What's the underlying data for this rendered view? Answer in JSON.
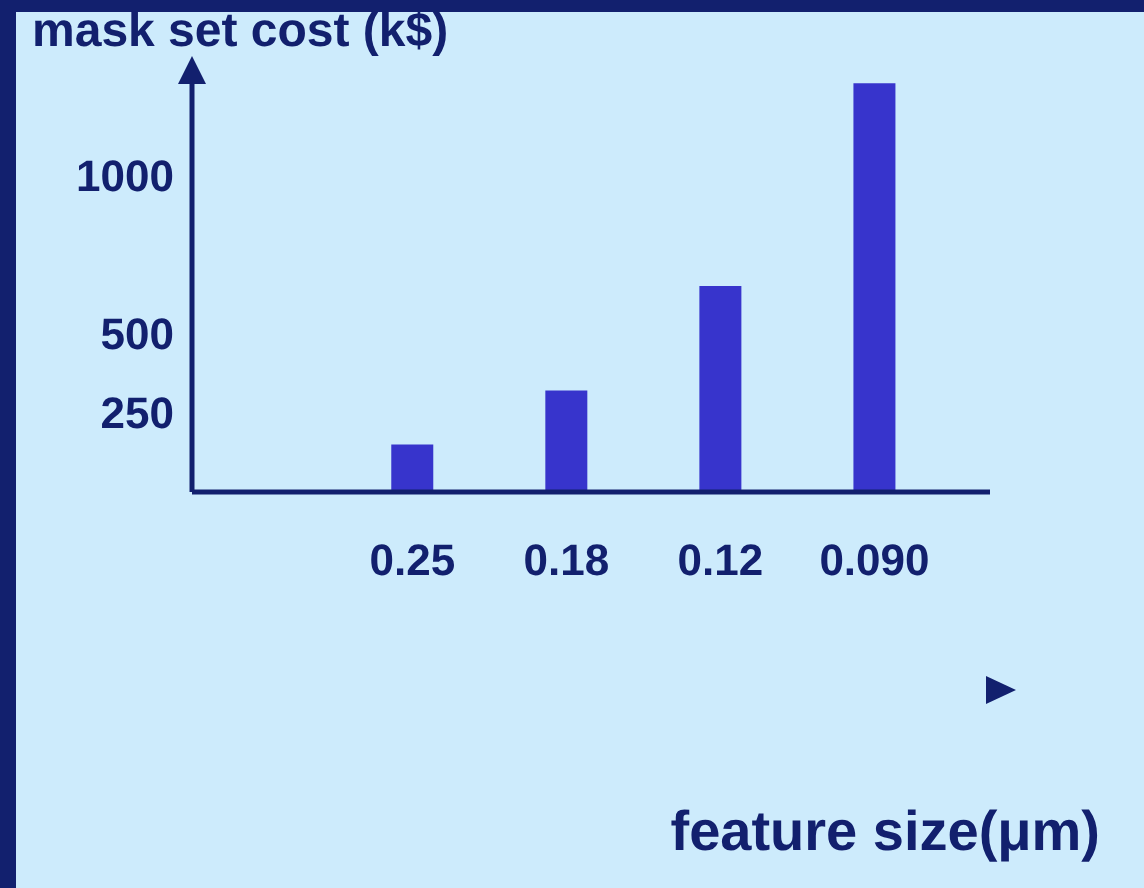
{
  "chart_data": {
    "type": "bar",
    "ylabel": "mask set cost (k$)",
    "xlabel": "feature size(μm)",
    "categories": [
      "0.25",
      "0.18",
      "0.12",
      "0.090"
    ],
    "values": [
      150,
      320,
      650,
      1290
    ],
    "color": "#3734cc",
    "ylim": [
      0,
      1300
    ],
    "yticks": [
      250,
      500,
      1000
    ]
  }
}
